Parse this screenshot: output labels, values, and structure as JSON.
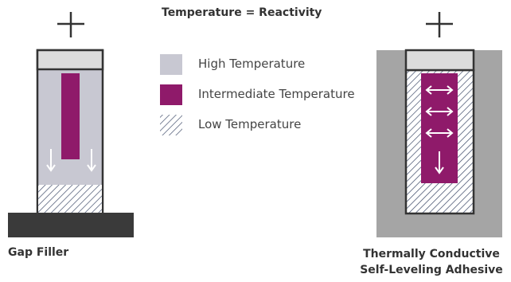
{
  "title": "Temperature = Reactivity",
  "legend": [
    {
      "label": "High Temperature",
      "color": "#c8c8d2"
    },
    {
      "label": "Intermediate Temperature",
      "color": "#8f1a6a"
    },
    {
      "label": "Low Temperature",
      "pattern": "hatched"
    }
  ],
  "left_diagram": {
    "caption": "Gap Filler",
    "plus_icon": "plus-icon",
    "arrows": [
      "arrow-down",
      "arrow-down"
    ]
  },
  "right_diagram": {
    "caption_line1": "Thermally Conductive",
    "caption_line2": "Self-Leveling Adhesive",
    "plus_icon": "plus-icon",
    "arrows": [
      "arrow-left-right",
      "arrow-left-right",
      "arrow-left-right",
      "arrow-down"
    ]
  },
  "colors": {
    "dark": "#333333",
    "base": "#3a3a3a",
    "high_temp": "#c8c8d2",
    "intermediate_temp": "#8f1a6a",
    "cap": "#dcdcdc",
    "hatch": "#3d4a68",
    "right_bg": "#a5a5a5"
  }
}
